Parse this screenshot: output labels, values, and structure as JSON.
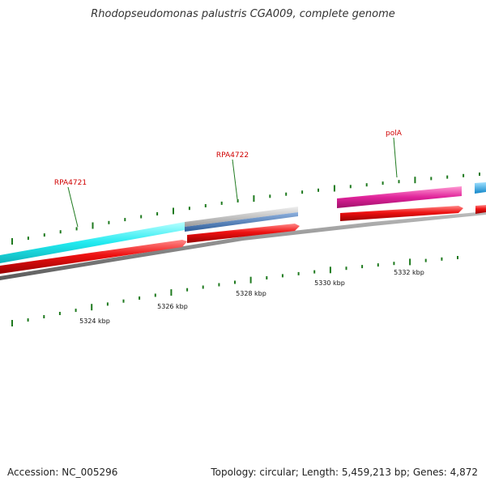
{
  "title": "Rhodopseudomonas palustris CGA009, complete genome",
  "footer": {
    "accession": "Accession: NC_005296",
    "info": "Topology: circular; Length: 5,459,213 bp; Genes: 4,872"
  },
  "tick_labels": [
    "5324 kbp",
    "5326 kbp",
    "5328 kbp",
    "5330 kbp",
    "5332 kbp"
  ],
  "gene_labels": [
    "RPA4721",
    "RPA4722",
    "polA"
  ],
  "colors": {
    "backbone": "#8c8c8c",
    "forward_cds": "#ee1111",
    "cyan_feature": "#22eaf0",
    "grey_feature": "#b3b3b3",
    "blue_feature": "#4a7bbd",
    "magenta_feature": "#e0239a",
    "light_blue_feature": "#19a8f0",
    "tick": "#1f7a1f",
    "label": "#d00000"
  }
}
